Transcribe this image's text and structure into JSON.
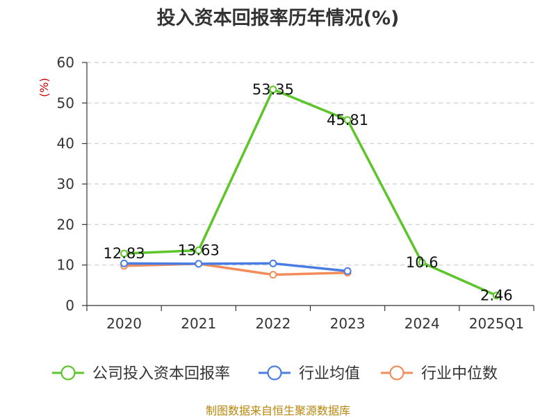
{
  "chart_data": {
    "type": "line",
    "title": "投入资本回报率历年情况(%)",
    "ylabel": "(%)",
    "xlabel": "",
    "ylim": [
      0,
      60
    ],
    "yticks": [
      0,
      10,
      20,
      30,
      40,
      50,
      60
    ],
    "categories": [
      "2020",
      "2021",
      "2022",
      "2023",
      "2024",
      "2025Q1"
    ],
    "grid": "horizontal-dashed",
    "legend_position": "bottom",
    "series": [
      {
        "name": "公司投入资本回报率",
        "color": "#5cc52a",
        "values": [
          12.83,
          13.63,
          53.35,
          45.81,
          10.6,
          2.46
        ],
        "labels": [
          "12.83",
          "13.63",
          "53.35",
          "45.81",
          "10.6",
          "2.46"
        ]
      },
      {
        "name": "行业均值",
        "color": "#4a7de3",
        "values": [
          10.4,
          10.3,
          10.4,
          8.5,
          null,
          null
        ]
      },
      {
        "name": "行业中位数",
        "color": "#f28c5a",
        "values": [
          9.8,
          10.3,
          7.6,
          8.1,
          null,
          null
        ]
      }
    ]
  },
  "source": "制图数据来自恒生聚源数据库"
}
